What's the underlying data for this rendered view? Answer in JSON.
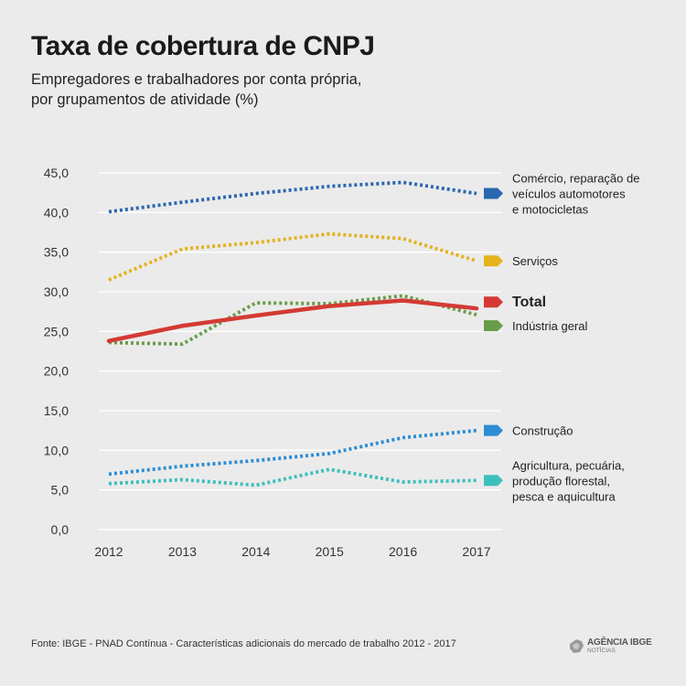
{
  "title": "Taxa de cobertura de CNPJ",
  "subtitle": [
    "Empregadores e trabalhadores por conta própria,",
    "por grupamentos de atividade (%)"
  ],
  "source": "Fonte: IBGE - PNAD Contínua - Características adicionais do mercado de trabalho 2012 - 2017",
  "logo": {
    "line1": "AGÊNCIA IBGE",
    "line2": "NOTÍCIAS"
  },
  "chart_data": {
    "type": "line",
    "title": "Taxa de cobertura de CNPJ",
    "xlabel": "",
    "ylabel": "",
    "categories": [
      "2012",
      "2013",
      "2014",
      "2015",
      "2016",
      "2017"
    ],
    "ylim": [
      0,
      45
    ],
    "yticks": [
      "0,0",
      "5,0",
      "10,0",
      "15,0",
      "20,0",
      "25,0",
      "30,0",
      "35,0",
      "40,0",
      "45,0"
    ],
    "grid": true,
    "series": [
      {
        "name": "Comércio, reparação de veículos automotores e motocicletas",
        "label_lines": [
          "Comércio,  reparação de",
          "veículos automotores",
          "e motocicletas"
        ],
        "values": [
          40.1,
          41.3,
          42.4,
          43.3,
          43.8,
          42.4
        ],
        "color": "#2b67b0",
        "style": "dotted",
        "bold": false
      },
      {
        "name": "Serviços",
        "label_lines": [
          "Serviços"
        ],
        "values": [
          31.5,
          35.4,
          36.2,
          37.3,
          36.7,
          33.9
        ],
        "color": "#e5b21e",
        "style": "dotted",
        "bold": false
      },
      {
        "name": "Total",
        "label_lines": [
          "Total"
        ],
        "values": [
          23.8,
          25.7,
          27.0,
          28.2,
          28.9,
          27.9
        ],
        "color": "#d43a33",
        "style": "solid",
        "bold": true
      },
      {
        "name": "Indústria geral",
        "label_lines": [
          "Indústria geral"
        ],
        "values": [
          23.6,
          23.4,
          28.6,
          28.5,
          29.5,
          27.1
        ],
        "color": "#6a9c4b",
        "style": "dotted",
        "bold": false
      },
      {
        "name": "Construção",
        "label_lines": [
          "Construção"
        ],
        "values": [
          7.0,
          8.0,
          8.7,
          9.6,
          11.6,
          12.5
        ],
        "color": "#2e8dd4",
        "style": "dotted",
        "bold": false
      },
      {
        "name": "Agricultura, pecuária, produção florestal, pesca e aquicultura",
        "label_lines": [
          "Agricultura, pecuária,",
          "produção florestal,",
          "pesca e aquicultura"
        ],
        "values": [
          5.8,
          6.3,
          5.6,
          7.6,
          6.0,
          6.2
        ],
        "color": "#3cbfbd",
        "style": "dotted",
        "bold": false
      }
    ]
  }
}
